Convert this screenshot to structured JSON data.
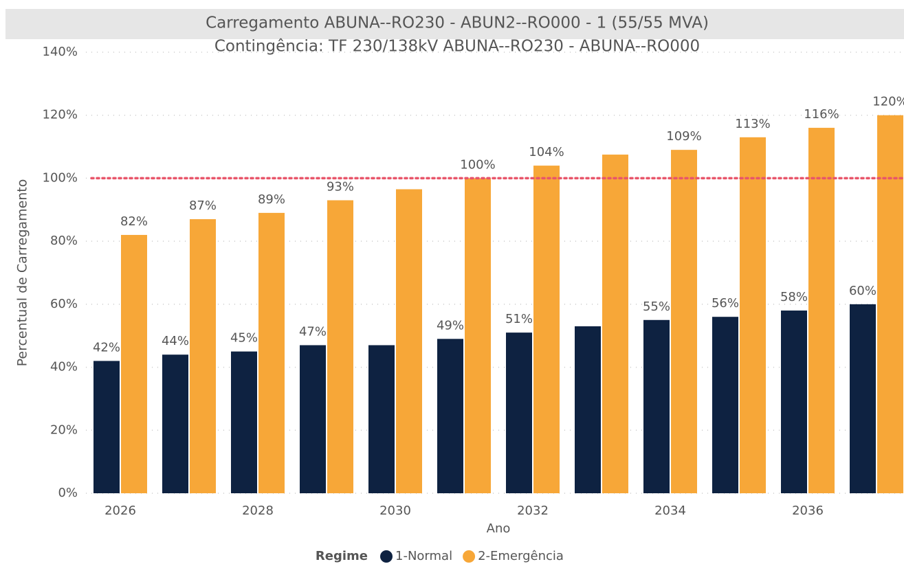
{
  "chart_data": {
    "type": "bar",
    "title": "Carregamento ABUNA--RO230 - ABUN2--RO000 - 1  (55/55 MVA)",
    "subtitle": "Contingência: TF 230/138kV ABUNA--RO230 - ABUNA--RO000",
    "x_label": "Ano",
    "y_label": "Percentual de Carregamento",
    "legend_title": "Regime",
    "categories": [
      "2026",
      null,
      "2028",
      null,
      "2030",
      null,
      "2032",
      null,
      "2034",
      null,
      "2036",
      null
    ],
    "series": [
      {
        "name": "1-Normal",
        "color": "#0e2241",
        "values": [
          42,
          44,
          45,
          47,
          47,
          49,
          51,
          53,
          55,
          56,
          58,
          60
        ],
        "value_labels": [
          "42%",
          "44%",
          "45%",
          "47%",
          null,
          "49%",
          "51%",
          null,
          "55%",
          "56%",
          "58%",
          "60%"
        ]
      },
      {
        "name": "2-Emergência",
        "color": "#f7a738",
        "values": [
          82,
          87,
          89,
          93,
          96.5,
          100,
          104,
          107.5,
          109,
          113,
          116,
          120
        ],
        "value_labels": [
          "82%",
          "87%",
          "89%",
          "93%",
          null,
          "100%",
          "104%",
          null,
          "109%",
          "113%",
          "116%",
          "120%"
        ]
      }
    ],
    "ylim": [
      0,
      140
    ],
    "yticks": [
      {
        "value": 0,
        "label": "0%"
      },
      {
        "value": 20,
        "label": "20%"
      },
      {
        "value": 40,
        "label": "40%"
      },
      {
        "value": 60,
        "label": "60%"
      },
      {
        "value": 80,
        "label": "80%"
      },
      {
        "value": 100,
        "label": "100%"
      },
      {
        "value": 120,
        "label": "120%"
      },
      {
        "value": 140,
        "label": "140%"
      }
    ],
    "grid": true,
    "reference_line": {
      "value": 100,
      "color": "#e8556a"
    }
  }
}
